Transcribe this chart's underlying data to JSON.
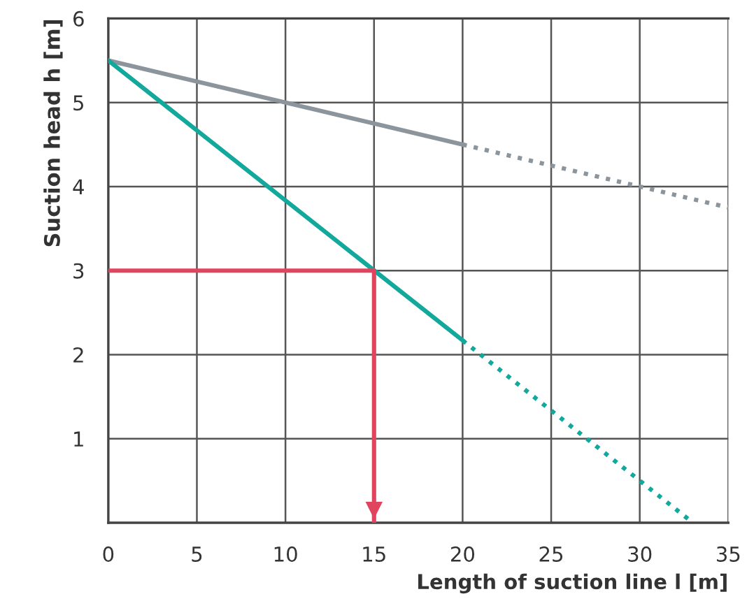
{
  "chart_data": {
    "type": "line",
    "xlabel": "Length of suction line l [m]",
    "ylabel": "Suction head h [m]",
    "xlim": [
      0,
      35
    ],
    "ylim": [
      0,
      6
    ],
    "xticks": [
      0,
      5,
      10,
      15,
      20,
      25,
      30,
      35
    ],
    "yticks": [
      1,
      2,
      3,
      4,
      5,
      6
    ],
    "grid": true,
    "marker": "none",
    "series": [
      {
        "color": "#8c949c",
        "x": [
          0,
          20
        ],
        "values": [
          5.5,
          4.5
        ],
        "line_style": "solid"
      },
      {
        "color": "#8c949c",
        "x": [
          20,
          35
        ],
        "values": [
          4.5,
          3.75
        ],
        "line_style": "dotted"
      },
      {
        "color": "#12a89c",
        "x": [
          0,
          20
        ],
        "values": [
          5.5,
          2.17
        ],
        "line_style": "solid"
      },
      {
        "color": "#12a89c",
        "x": [
          20,
          33
        ],
        "values": [
          2.17,
          0
        ],
        "line_style": "dotted"
      },
      {
        "color": "#e0445f",
        "x": [
          0,
          15,
          15
        ],
        "values": [
          3,
          3,
          0
        ],
        "line_style": "solid"
      }
    ]
  }
}
